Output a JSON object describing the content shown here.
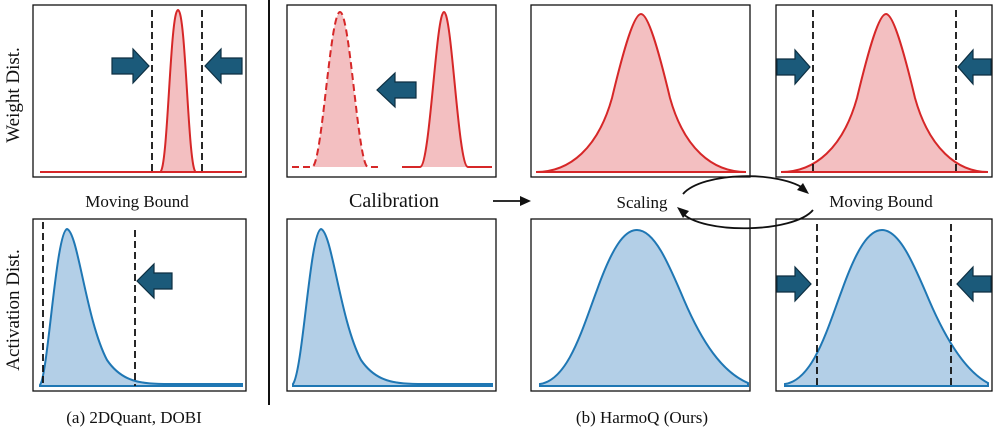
{
  "row_labels": {
    "weight": "Weight Dist.",
    "activation": "Activation Dist."
  },
  "labels": {
    "a_moving_bound": "Moving Bound",
    "calibration": "Calibration",
    "scaling": "Scaling",
    "b_moving_bound": "Moving Bound"
  },
  "captions": {
    "a": "(a) 2DQuant, DOBI",
    "b": "(b) HarmoQ (Ours)"
  },
  "colors": {
    "weight_stroke": "#d62728",
    "weight_fill": "#f3bfc1",
    "activation_stroke": "#1f77b4",
    "activation_fill": "#b3cfe7",
    "arrow_fill": "#1b5a7a",
    "arrow_stroke": "#0d2f42"
  }
}
